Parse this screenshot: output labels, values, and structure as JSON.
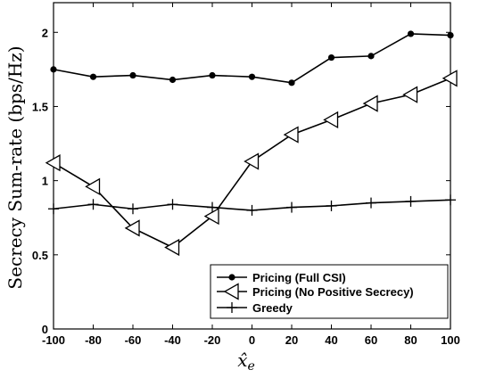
{
  "chart_data": {
    "type": "line",
    "x": [
      -100,
      -80,
      -60,
      -40,
      -20,
      0,
      20,
      40,
      60,
      80,
      100
    ],
    "xlabel": "x̂",
    "xlabel_sub": "e",
    "ylabel": "Secrecy Sum-rate (bps/Hz)",
    "xlim": [
      -100,
      100
    ],
    "ylim": [
      0,
      2.2
    ],
    "xticks": [
      "-100",
      "-80",
      "-60",
      "-40",
      "-20",
      "0",
      "20",
      "40",
      "60",
      "80",
      "100"
    ],
    "yticks": [
      0,
      0.5,
      1,
      1.5,
      2
    ],
    "ytick_labels": [
      "0",
      "0.5",
      "1",
      "1.5",
      "2"
    ],
    "grid": false,
    "legend_position": "bottom-right",
    "series": [
      {
        "name": "Pricing (Full CSI)",
        "marker": "dot",
        "values": [
          1.75,
          1.7,
          1.71,
          1.68,
          1.71,
          1.7,
          1.66,
          1.83,
          1.84,
          1.99,
          1.98
        ]
      },
      {
        "name": "Pricing (No Positive Secrecy)",
        "marker": "triangle-left",
        "values": [
          1.12,
          0.96,
          0.68,
          0.55,
          0.76,
          1.13,
          1.31,
          1.41,
          1.52,
          1.58,
          1.69
        ]
      },
      {
        "name": "Greedy",
        "marker": "plus",
        "values": [
          0.81,
          0.84,
          0.81,
          0.84,
          0.82,
          0.8,
          0.82,
          0.83,
          0.85,
          0.86,
          0.87
        ]
      }
    ]
  }
}
